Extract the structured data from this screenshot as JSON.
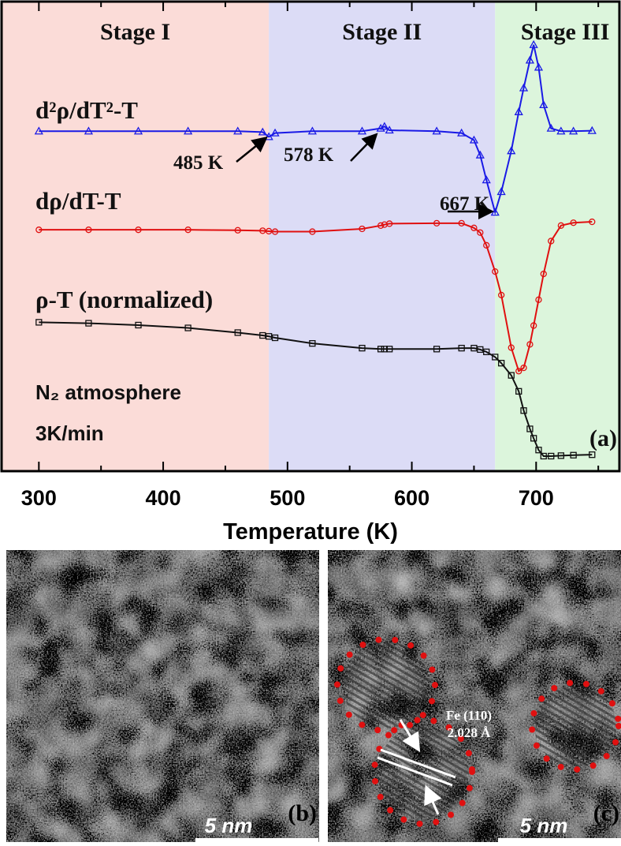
{
  "chart_data": {
    "type": "line",
    "xlabel": "Temperature (K)",
    "xlim": [
      270,
      767
    ],
    "ylim": [
      0,
      100
    ],
    "xticks": [
      300,
      400,
      500,
      600,
      700
    ],
    "x_minor_ticks": [
      350,
      450,
      550,
      650,
      750
    ],
    "regions": [
      {
        "label": "Stage I",
        "range": [
          270,
          485
        ],
        "color": "#fbdcd8"
      },
      {
        "label": "Stage II",
        "range": [
          485,
          667
        ],
        "color": "#dcdcf6"
      },
      {
        "label": "Stage III",
        "range": [
          667,
          767
        ],
        "color": "#dcf5dc"
      }
    ],
    "x": [
      300,
      340,
      380,
      420,
      460,
      480,
      485,
      490,
      520,
      560,
      575,
      578,
      582,
      620,
      640,
      650,
      655,
      660,
      667,
      672,
      680,
      686,
      690,
      695,
      698,
      702,
      706,
      712,
      720,
      730,
      745
    ],
    "series": [
      {
        "name": "d²ρ/dT²-T",
        "color": "#1a1ae6",
        "marker": "triangle",
        "values": [
          72.4,
          72.4,
          72.4,
          72.4,
          72.4,
          72.2,
          71.2,
          72.0,
          72.4,
          72.4,
          73.0,
          73.4,
          72.6,
          72.4,
          72.0,
          70.5,
          67.3,
          62.0,
          55.1,
          59.5,
          68.2,
          76.5,
          81.6,
          87.5,
          90.8,
          86.0,
          78.0,
          73.0,
          72.4,
          72.4,
          72.5
        ]
      },
      {
        "name": "dρ/dT-T",
        "color": "#e01010",
        "marker": "circle",
        "values": [
          51.4,
          51.4,
          51.4,
          51.4,
          51.3,
          51.2,
          51.1,
          51.0,
          51.0,
          51.6,
          52.3,
          52.5,
          52.7,
          52.8,
          52.8,
          51.8,
          50.8,
          48.1,
          42.5,
          37.5,
          26.3,
          21.3,
          22.0,
          27.0,
          31.0,
          36.5,
          42.0,
          49.0,
          52.3,
          52.9,
          53.1
        ]
      },
      {
        "name": "ρ-T (normalized)",
        "color": "#111111",
        "marker": "square",
        "values": [
          31.7,
          31.5,
          31.1,
          30.5,
          29.5,
          28.9,
          28.7,
          28.4,
          27.2,
          26.2,
          26.0,
          26.0,
          26.0,
          26.0,
          26.2,
          26.2,
          25.9,
          25.4,
          24.3,
          23.0,
          20.4,
          17.0,
          12.9,
          9.0,
          7.0,
          4.5,
          3.2,
          3.2,
          3.3,
          3.4,
          3.5
        ]
      }
    ],
    "annotations": [
      "485 K",
      "578 K",
      "667 K",
      "N₂ atmosphere",
      "3K/min",
      "(a)"
    ]
  },
  "panels": [
    {
      "label": "(b)",
      "scale_bar": "5 nm"
    },
    {
      "label": "(c)",
      "scale_bar": "5 nm",
      "annotation": [
        "Fe (110)",
        "2.028 Å"
      ]
    }
  ]
}
